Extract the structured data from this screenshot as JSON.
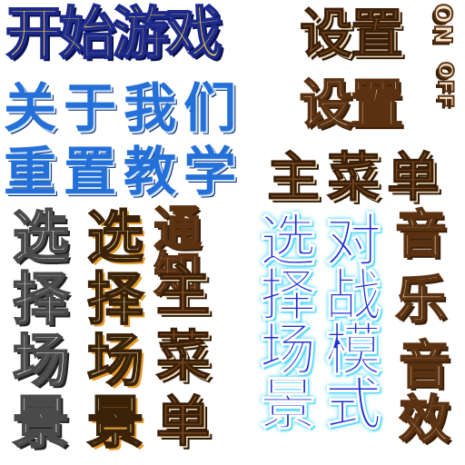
{
  "buttons": {
    "start_game": "开始游戏",
    "settings_1": "设置",
    "settings_2": "设置",
    "about_us": "关于我们",
    "reset_tutorial": "重置教学",
    "main_menu": "主菜单",
    "choose_scene_gray": "选择场景",
    "choose_scene_orange": "选择场景",
    "notice": "通知",
    "main_menu_vertical": "主菜单",
    "choose_scene_neon": "选择场景",
    "battle_mode": "对战模式",
    "music": "音乐",
    "sound_effect": "音效",
    "on": "ON",
    "off": "OFF"
  }
}
